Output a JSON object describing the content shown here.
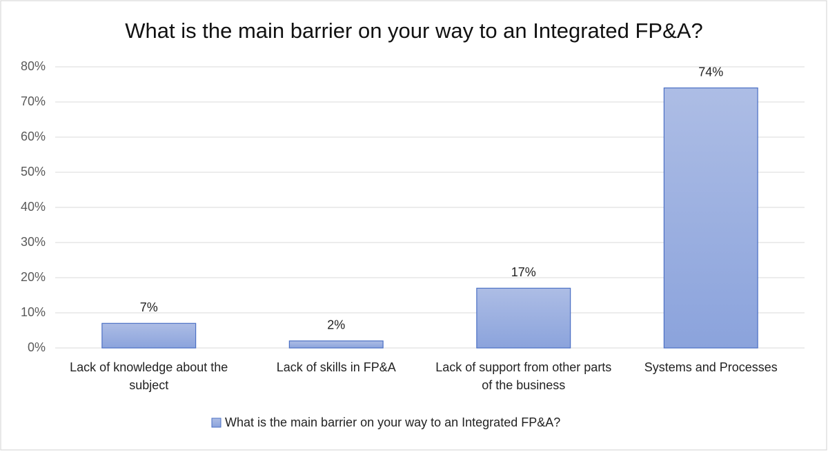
{
  "chart_data": {
    "type": "bar",
    "title": "What is the main barrier on your way to an Integrated FP&A?",
    "categories": [
      "Lack of knowledge about the subject",
      "Lack of skills in FP&A",
      "Lack of support from other parts of the business",
      "Systems and Processes"
    ],
    "series": [
      {
        "name": "What is the main barrier on your way to an Integrated FP&A?",
        "color": "#9aaede",
        "values": [
          7,
          2,
          17,
          74
        ],
        "value_labels": [
          "7%",
          "2%",
          "17%",
          "74%"
        ]
      }
    ],
    "ylim": [
      0,
      80
    ],
    "yticks": [
      {
        "value": 0,
        "label": "0%"
      },
      {
        "value": 10,
        "label": "10%"
      },
      {
        "value": 20,
        "label": "20%"
      },
      {
        "value": 30,
        "label": "30%"
      },
      {
        "value": 40,
        "label": "40%"
      },
      {
        "value": 50,
        "label": "50%"
      },
      {
        "value": 60,
        "label": "60%"
      },
      {
        "value": 70,
        "label": "70%"
      },
      {
        "value": 80,
        "label": "80%"
      }
    ],
    "grid": true,
    "legend": "bottom"
  }
}
